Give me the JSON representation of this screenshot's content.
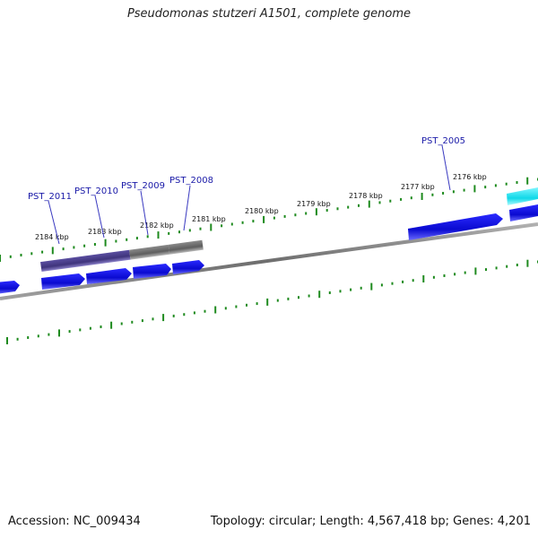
{
  "title": "Pseudomonas stutzeri A1501, complete genome",
  "accession": "Accession: NC_009434",
  "summary": "Topology: circular; Length: 4,567,418 bp; Genes: 4,201",
  "colors": {
    "backbone": "#8a8a8a",
    "tick": "#1e8a1e",
    "gene_forward": "#0b0bd6",
    "gene_highlight": "#10d8e8",
    "cds_purple": "#4a3e8c",
    "cds_gray": "#777777",
    "label": "#1a1aa8"
  },
  "kbp_labels": [
    "2184 kbp",
    "2183 kbp",
    "2182 kbp",
    "2181 kbp",
    "2180 kbp",
    "2179 kbp",
    "2178 kbp",
    "2177 kbp",
    "2176 kbp"
  ],
  "gene_labels": [
    "PST_2011",
    "PST_2010",
    "PST_2009",
    "PST_2008",
    "PST_2005"
  ]
}
